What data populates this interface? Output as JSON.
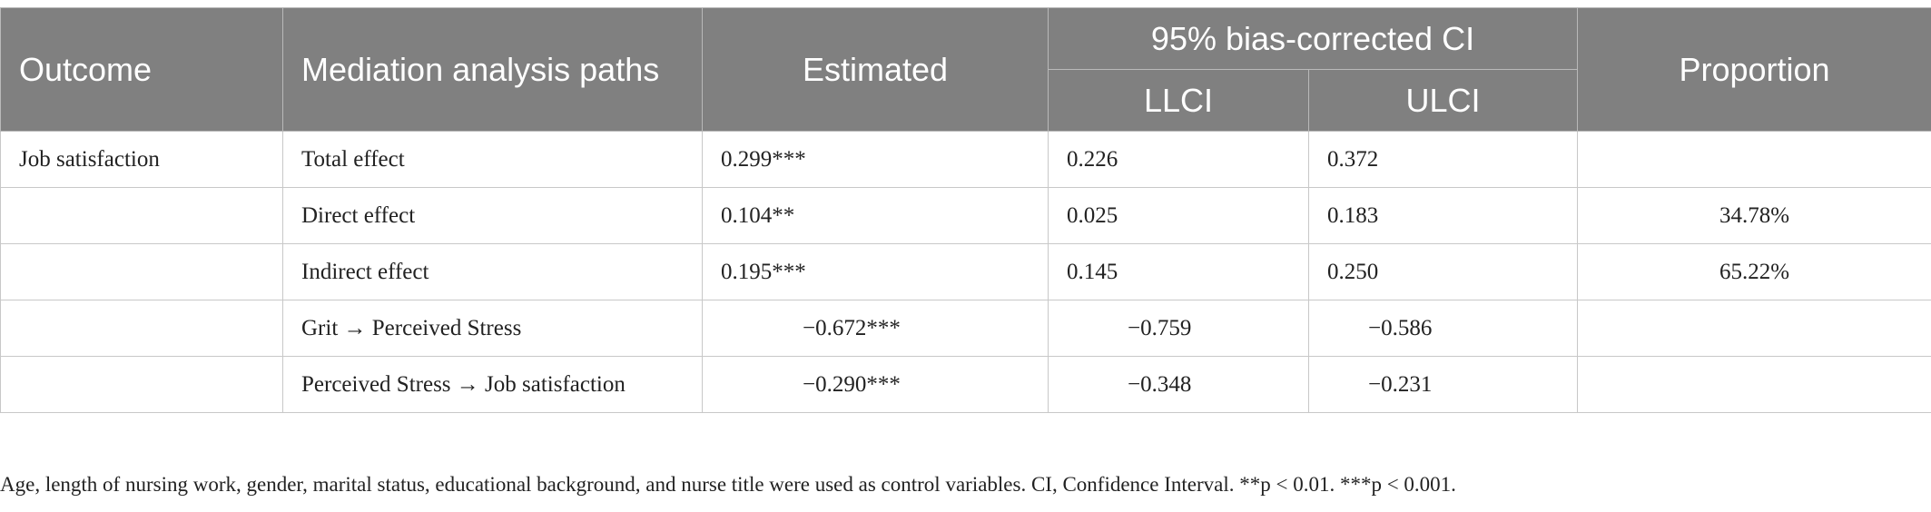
{
  "header": {
    "outcome": "Outcome",
    "paths": "Mediation analysis paths",
    "estimated": "Estimated",
    "ci": "95% bias-corrected CI",
    "llci": "LLCI",
    "ulci": "ULCI",
    "proportion": "Proportion"
  },
  "rows": [
    {
      "outcome": "Job satisfaction",
      "path": "Total effect",
      "estimated": "0.299***",
      "llci": "0.226",
      "ulci": "0.372",
      "proportion": ""
    },
    {
      "outcome": "",
      "path": "Direct effect",
      "estimated": "0.104**",
      "llci": "0.025",
      "ulci": "0.183",
      "proportion": "34.78%"
    },
    {
      "outcome": "",
      "path": "Indirect effect",
      "estimated": "0.195***",
      "llci": "0.145",
      "ulci": "0.250",
      "proportion": "65.22%"
    },
    {
      "outcome": "",
      "path": "Grit → Perceived Stress",
      "estimated": "−0.672***",
      "llci": "−0.759",
      "ulci": "−0.586",
      "proportion": ""
    },
    {
      "outcome": "",
      "path": "Perceived Stress → Job satisfaction",
      "estimated": "−0.290***",
      "llci": "−0.348",
      "ulci": "−0.231",
      "proportion": ""
    }
  ],
  "footnote": "Age, length of nursing work, gender, marital status, educational background, and nurse title were used as control variables. CI, Confidence Interval. **p < 0.01. ***p < 0.001."
}
